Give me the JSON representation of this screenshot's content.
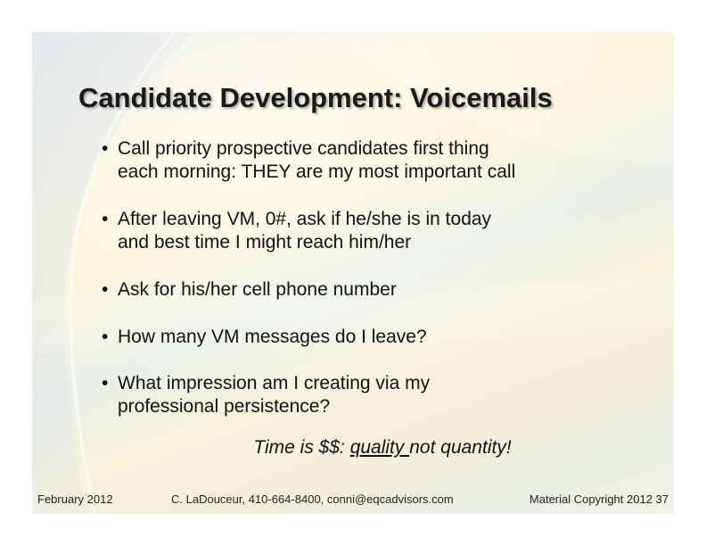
{
  "slide": {
    "title": "Candidate Development:  Voicemails",
    "bullet_glyph": "•",
    "bullets": [
      {
        "line1": "Call priority prospective candidates first thing",
        "line2": "each  morning: THEY are my most important call"
      },
      {
        "line1": "After leaving VM, 0#, ask if he/she is in today",
        "line2": "and best time I might reach him/her"
      },
      {
        "line1": "Ask for his/her cell phone number",
        "line2": ""
      },
      {
        "line1": "How many VM messages do I leave?",
        "line2": ""
      },
      {
        "line1": "What impression am I creating via my",
        "line2": "professional persistence?"
      }
    ],
    "tagline": {
      "before": "Time is $$:  ",
      "underlined": "quality ",
      "after": "not quantity!"
    },
    "footer": {
      "left": "February 2012",
      "center": "C. LaDouceur, 410-664-8400, conni@eqcadvisors.com",
      "right": "Material Copyright  2012 37"
    }
  },
  "colors": {
    "text": "#111111",
    "title": "#1a1a1a",
    "background_warm": "#fbf5d8",
    "background_cool": "#e9f0e8"
  }
}
